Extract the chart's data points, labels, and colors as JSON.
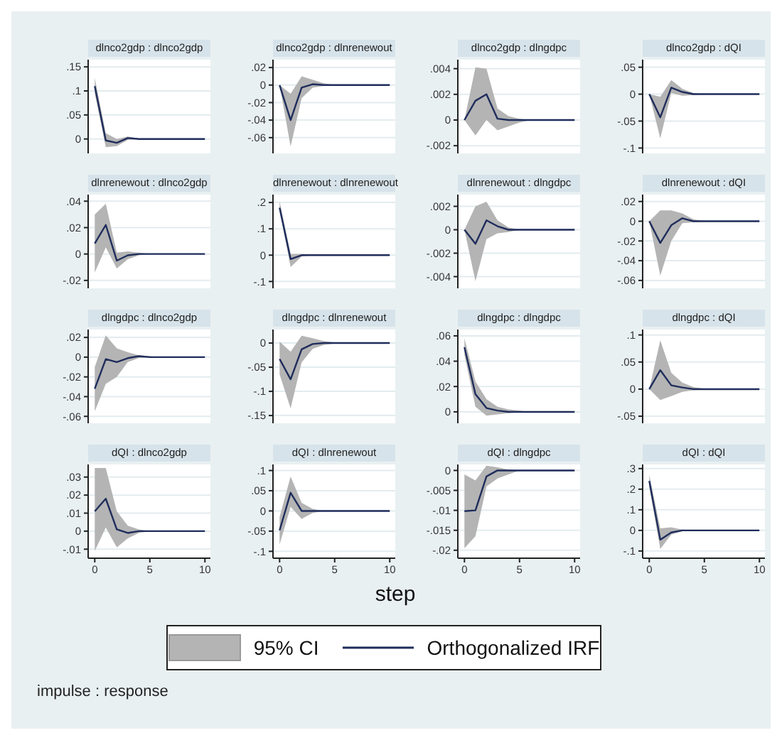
{
  "chart_data": [
    {
      "type": "line",
      "title": "dlnco2gdp : dlnco2gdp",
      "x": [
        0,
        1,
        2,
        3,
        4,
        5,
        6,
        7,
        8,
        9,
        10
      ],
      "xlim": [
        -0.6,
        10.5
      ],
      "xticks": [
        0,
        5,
        10
      ],
      "ylim": [
        -0.03,
        0.165
      ],
      "yticks": [
        {
          "value": 0,
          "label": "0"
        },
        {
          "value": 0.05,
          "label": ".05"
        },
        {
          "value": 0.1,
          "label": ".1"
        },
        {
          "value": 0.15,
          "label": ".15"
        }
      ],
      "grid": "y",
      "tick_labels": "y",
      "series": [
        {
          "color": "#1f2d5c",
          "values": [
            0.11,
            -0.003,
            -0.008,
            0.002,
            0,
            0,
            0,
            0,
            0,
            0,
            0
          ],
          "lower": [
            0.095,
            -0.017,
            -0.015,
            -0.002,
            0,
            0,
            0,
            0,
            0,
            0,
            0
          ],
          "upper": [
            0.127,
            0.012,
            0,
            0.005,
            0.001,
            0,
            0,
            0,
            0,
            0,
            0
          ]
        }
      ]
    },
    {
      "type": "line",
      "title": "dlnco2gdp : dlnrenewout",
      "x": [
        0,
        1,
        2,
        3,
        4,
        5,
        6,
        7,
        8,
        9,
        10
      ],
      "xlim": [
        -0.6,
        10.5
      ],
      "xticks": [
        0,
        5,
        10
      ],
      "ylim": [
        -0.078,
        0.029
      ],
      "yticks": [
        {
          "value": -0.06,
          "label": "-.06"
        },
        {
          "value": -0.04,
          "label": "-.04"
        },
        {
          "value": -0.02,
          "label": "-.02"
        },
        {
          "value": 0,
          "label": "0"
        },
        {
          "value": 0.02,
          "label": ".02"
        }
      ],
      "grid": "y",
      "tick_labels": "y",
      "series": [
        {
          "color": "#1f2d5c",
          "values": [
            0,
            -0.04,
            -0.003,
            0.001,
            0,
            0,
            0,
            0,
            0,
            0,
            0
          ],
          "lower": [
            0,
            -0.07,
            -0.015,
            -0.003,
            -0.001,
            0,
            0,
            0,
            0,
            0,
            0
          ],
          "upper": [
            0,
            -0.01,
            0.01,
            0.006,
            0.002,
            0,
            0,
            0,
            0,
            0,
            0
          ]
        }
      ]
    },
    {
      "type": "line",
      "title": "dlnco2gdp : dlngdpc",
      "x": [
        0,
        1,
        2,
        3,
        4,
        5,
        6,
        7,
        8,
        9,
        10
      ],
      "xlim": [
        -0.6,
        10.5
      ],
      "xticks": [
        0,
        5,
        10
      ],
      "ylim": [
        -0.0026,
        0.0047
      ],
      "yticks": [
        {
          "value": -0.002,
          "label": "-.002"
        },
        {
          "value": 0,
          "label": "0"
        },
        {
          "value": 0.002,
          "label": ".002"
        },
        {
          "value": 0.004,
          "label": ".004"
        }
      ],
      "grid": "y",
      "tick_labels": "y",
      "series": [
        {
          "color": "#1f2d5c",
          "values": [
            0,
            0.0015,
            0.002,
            0.0001,
            0,
            0,
            0,
            0,
            0,
            0,
            0
          ],
          "lower": [
            0,
            -0.0012,
            0,
            -0.0008,
            -0.0005,
            -0.0002,
            0,
            0,
            0,
            0,
            0
          ],
          "upper": [
            0,
            0.0041,
            0.004,
            0.0009,
            0.0003,
            0.0001,
            0,
            0,
            0,
            0,
            0
          ]
        }
      ]
    },
    {
      "type": "line",
      "title": "dlnco2gdp : dQI",
      "x": [
        0,
        1,
        2,
        3,
        4,
        5,
        6,
        7,
        8,
        9,
        10
      ],
      "xlim": [
        -0.6,
        10.5
      ],
      "xticks": [
        0,
        5,
        10
      ],
      "ylim": [
        -0.11,
        0.064
      ],
      "yticks": [
        {
          "value": -0.1,
          "label": "-.1"
        },
        {
          "value": -0.05,
          "label": "-.05"
        },
        {
          "value": 0,
          "label": "0"
        },
        {
          "value": 0.05,
          "label": ".05"
        }
      ],
      "grid": "y",
      "tick_labels": "y",
      "series": [
        {
          "color": "#1f2d5c",
          "values": [
            0,
            -0.043,
            0.012,
            0.004,
            0,
            0,
            0,
            0,
            0,
            0,
            0
          ],
          "lower": [
            0,
            -0.082,
            0.002,
            -0.003,
            -0.002,
            0,
            0,
            0,
            0,
            0,
            0
          ],
          "upper": [
            0,
            -0.005,
            0.026,
            0.01,
            0.002,
            0,
            0,
            0,
            0,
            0,
            0
          ]
        }
      ]
    },
    {
      "type": "line",
      "title": "dlnrenewout : dlnco2gdp",
      "x": [
        0,
        1,
        2,
        3,
        4,
        5,
        6,
        7,
        8,
        9,
        10
      ],
      "xlim": [
        -0.6,
        10.5
      ],
      "xticks": [
        0,
        5,
        10
      ],
      "ylim": [
        -0.026,
        0.045
      ],
      "yticks": [
        {
          "value": -0.02,
          "label": "-.02"
        },
        {
          "value": 0,
          "label": "0"
        },
        {
          "value": 0.02,
          "label": ".02"
        },
        {
          "value": 0.04,
          "label": ".04"
        }
      ],
      "grid": "y",
      "tick_labels": "y",
      "series": [
        {
          "color": "#1f2d5c",
          "values": [
            0.008,
            0.022,
            -0.005,
            -0.001,
            0,
            0,
            0,
            0,
            0,
            0,
            0
          ],
          "lower": [
            -0.014,
            0.005,
            -0.011,
            -0.004,
            -0.001,
            0,
            0,
            0,
            0,
            0,
            0
          ],
          "upper": [
            0.03,
            0.038,
            0.001,
            0.002,
            0.001,
            0,
            0,
            0,
            0,
            0,
            0
          ]
        }
      ]
    },
    {
      "type": "line",
      "title": "dlnrenewout : dlnrenewout",
      "x": [
        0,
        1,
        2,
        3,
        4,
        5,
        6,
        7,
        8,
        9,
        10
      ],
      "xlim": [
        -0.6,
        10.5
      ],
      "xticks": [
        0,
        5,
        10
      ],
      "ylim": [
        -0.126,
        0.23
      ],
      "yticks": [
        {
          "value": -0.1,
          "label": "-.1"
        },
        {
          "value": 0,
          "label": "0"
        },
        {
          "value": 0.1,
          "label": ".1"
        },
        {
          "value": 0.2,
          "label": ".2"
        }
      ],
      "grid": "y",
      "tick_labels": "y",
      "series": [
        {
          "color": "#1f2d5c",
          "values": [
            0.18,
            -0.015,
            0,
            0,
            0,
            0,
            0,
            0,
            0,
            0,
            0
          ],
          "lower": [
            0.17,
            -0.045,
            -0.005,
            0,
            0,
            0,
            0,
            0,
            0,
            0,
            0
          ],
          "upper": [
            0.205,
            0.005,
            0.005,
            0,
            0,
            0,
            0,
            0,
            0,
            0,
            0
          ]
        }
      ]
    },
    {
      "type": "line",
      "title": "dlnrenewout : dlngdpc",
      "x": [
        0,
        1,
        2,
        3,
        4,
        5,
        6,
        7,
        8,
        9,
        10
      ],
      "xlim": [
        -0.6,
        10.5
      ],
      "xticks": [
        0,
        5,
        10
      ],
      "ylim": [
        -0.005,
        0.003
      ],
      "yticks": [
        {
          "value": -0.004,
          "label": "-.004"
        },
        {
          "value": -0.002,
          "label": "-.002"
        },
        {
          "value": 0,
          "label": "0"
        },
        {
          "value": 0.002,
          "label": ".002"
        }
      ],
      "grid": "y",
      "tick_labels": "y",
      "series": [
        {
          "color": "#1f2d5c",
          "values": [
            0,
            -0.0012,
            0.0008,
            0.0003,
            0,
            0,
            0,
            0,
            0,
            0,
            0
          ],
          "lower": [
            0,
            -0.0044,
            -0.0008,
            -0.0003,
            -0.0002,
            0,
            0,
            0,
            0,
            0,
            0
          ],
          "upper": [
            0,
            0.002,
            0.0024,
            0.0008,
            0.0002,
            0,
            0,
            0,
            0,
            0,
            0
          ]
        }
      ]
    },
    {
      "type": "line",
      "title": "dlnrenewout : dQI",
      "x": [
        0,
        1,
        2,
        3,
        4,
        5,
        6,
        7,
        8,
        9,
        10
      ],
      "xlim": [
        -0.6,
        10.5
      ],
      "xticks": [
        0,
        5,
        10
      ],
      "ylim": [
        -0.068,
        0.027
      ],
      "yticks": [
        {
          "value": -0.06,
          "label": "-.06"
        },
        {
          "value": -0.04,
          "label": "-.04"
        },
        {
          "value": -0.02,
          "label": "-.02"
        },
        {
          "value": 0,
          "label": "0"
        },
        {
          "value": 0.02,
          "label": ".02"
        }
      ],
      "grid": "y",
      "tick_labels": "y",
      "series": [
        {
          "color": "#1f2d5c",
          "values": [
            0,
            -0.022,
            -0.004,
            0.003,
            0,
            0,
            0,
            0,
            0,
            0,
            0
          ],
          "lower": [
            0,
            -0.055,
            -0.02,
            -0.002,
            -0.001,
            0,
            0,
            0,
            0,
            0,
            0
          ],
          "upper": [
            0,
            0.011,
            0.011,
            0.008,
            0.002,
            0,
            0,
            0,
            0,
            0,
            0
          ]
        }
      ]
    },
    {
      "type": "line",
      "title": "dlngdpc : dlnco2gdp",
      "x": [
        0,
        1,
        2,
        3,
        4,
        5,
        6,
        7,
        8,
        9,
        10
      ],
      "xlim": [
        -0.6,
        10.5
      ],
      "xticks": [
        0,
        5,
        10
      ],
      "ylim": [
        -0.067,
        0.028
      ],
      "yticks": [
        {
          "value": -0.06,
          "label": "-.06"
        },
        {
          "value": -0.04,
          "label": "-.04"
        },
        {
          "value": -0.02,
          "label": "-.02"
        },
        {
          "value": 0,
          "label": "0"
        },
        {
          "value": 0.02,
          "label": ".02"
        }
      ],
      "grid": "y",
      "tick_labels": "y",
      "series": [
        {
          "color": "#1f2d5c",
          "values": [
            -0.032,
            -0.002,
            -0.005,
            -0.001,
            0.001,
            0,
            0,
            0,
            0,
            0,
            0
          ],
          "lower": [
            -0.055,
            -0.027,
            -0.02,
            -0.005,
            -0.001,
            0,
            0,
            0,
            0,
            0,
            0
          ],
          "upper": [
            -0.01,
            0.022,
            0.009,
            0.005,
            0.002,
            0.001,
            0,
            0,
            0,
            0,
            0
          ]
        }
      ]
    },
    {
      "type": "line",
      "title": "dlngdpc : dlnrenewout",
      "x": [
        0,
        1,
        2,
        3,
        4,
        5,
        6,
        7,
        8,
        9,
        10
      ],
      "xlim": [
        -0.6,
        10.5
      ],
      "xticks": [
        0,
        5,
        10
      ],
      "ylim": [
        -0.166,
        0.028
      ],
      "yticks": [
        {
          "value": -0.15,
          "label": "-.15"
        },
        {
          "value": -0.1,
          "label": "-.1"
        },
        {
          "value": -0.05,
          "label": "-.05"
        },
        {
          "value": 0,
          "label": "0"
        }
      ],
      "grid": "y",
      "tick_labels": "y",
      "series": [
        {
          "color": "#1f2d5c",
          "values": [
            -0.033,
            -0.075,
            -0.013,
            -0.002,
            0,
            0,
            0,
            0,
            0,
            0,
            0
          ],
          "lower": [
            -0.065,
            -0.135,
            -0.04,
            -0.012,
            -0.004,
            -0.001,
            0,
            0,
            0,
            0,
            0
          ],
          "upper": [
            0.003,
            -0.018,
            0.015,
            0.01,
            0.004,
            0.001,
            0,
            0,
            0,
            0,
            0
          ]
        }
      ]
    },
    {
      "type": "line",
      "title": "dlngdpc : dlngdpc",
      "x": [
        0,
        1,
        2,
        3,
        4,
        5,
        6,
        7,
        8,
        9,
        10
      ],
      "xlim": [
        -0.6,
        10.5
      ],
      "xticks": [
        0,
        5,
        10
      ],
      "ylim": [
        -0.009,
        0.065
      ],
      "yticks": [
        {
          "value": 0,
          "label": "0"
        },
        {
          "value": 0.02,
          "label": ".02"
        },
        {
          "value": 0.04,
          "label": ".04"
        },
        {
          "value": 0.06,
          "label": ".06"
        }
      ],
      "grid": "y",
      "tick_labels": "y",
      "series": [
        {
          "color": "#1f2d5c",
          "values": [
            0.051,
            0.014,
            0.003,
            0.001,
            0,
            0,
            0,
            0,
            0,
            0,
            0
          ],
          "lower": [
            0.045,
            0.004,
            -0.003,
            -0.002,
            -0.001,
            0,
            0,
            0,
            0,
            0,
            0
          ],
          "upper": [
            0.058,
            0.024,
            0.01,
            0.004,
            0.002,
            0.001,
            0,
            0,
            0,
            0,
            0
          ]
        }
      ]
    },
    {
      "type": "line",
      "title": "dlngdpc : dQI",
      "x": [
        0,
        1,
        2,
        3,
        4,
        5,
        6,
        7,
        8,
        9,
        10
      ],
      "xlim": [
        -0.6,
        10.5
      ],
      "xticks": [
        0,
        5,
        10
      ],
      "ylim": [
        -0.063,
        0.11
      ],
      "yticks": [
        {
          "value": -0.05,
          "label": "-.05"
        },
        {
          "value": 0,
          "label": "0"
        },
        {
          "value": 0.05,
          "label": ".05"
        },
        {
          "value": 0.1,
          "label": ".1"
        }
      ],
      "grid": "y",
      "tick_labels": "y",
      "series": [
        {
          "color": "#1f2d5c",
          "values": [
            0,
            0.035,
            0.007,
            0.003,
            0,
            0,
            0,
            0,
            0,
            0,
            0
          ],
          "lower": [
            0,
            -0.02,
            -0.013,
            -0.005,
            -0.002,
            0,
            0,
            0,
            0,
            0,
            0
          ],
          "upper": [
            0,
            0.09,
            0.03,
            0.012,
            0.004,
            0.001,
            0,
            0,
            0,
            0,
            0
          ]
        }
      ]
    },
    {
      "type": "line",
      "title": "dQI : dlnco2gdp",
      "x": [
        0,
        1,
        2,
        3,
        4,
        5,
        6,
        7,
        8,
        9,
        10
      ],
      "xlim": [
        -0.6,
        10.5
      ],
      "xticks": [
        0,
        5,
        10
      ],
      "ylim": [
        -0.015,
        0.037
      ],
      "yticks": [
        {
          "value": -0.01,
          "label": "-.01"
        },
        {
          "value": 0,
          "label": "0"
        },
        {
          "value": 0.01,
          "label": ".01"
        },
        {
          "value": 0.02,
          "label": ".02"
        },
        {
          "value": 0.03,
          "label": ".03"
        }
      ],
      "grid": "y",
      "series": [
        {
          "color": "#1f2d5c",
          "values": [
            0.011,
            0.018,
            0.001,
            -0.001,
            0,
            0,
            0,
            0,
            0,
            0,
            0
          ],
          "lower": [
            -0.011,
            0.002,
            -0.009,
            -0.004,
            -0.001,
            0,
            0,
            0,
            0,
            0,
            0
          ],
          "upper": [
            0.035,
            0.035,
            0.011,
            0.003,
            0.001,
            0,
            0,
            0,
            0,
            0,
            0
          ]
        }
      ]
    },
    {
      "type": "line",
      "title": "dQI : dlnrenewout",
      "x": [
        0,
        1,
        2,
        3,
        4,
        5,
        6,
        7,
        8,
        9,
        10
      ],
      "xlim": [
        -0.6,
        10.5
      ],
      "xticks": [
        0,
        5,
        10
      ],
      "ylim": [
        -0.117,
        0.115
      ],
      "yticks": [
        {
          "value": -0.1,
          "label": "-.1"
        },
        {
          "value": -0.05,
          "label": "-.05"
        },
        {
          "value": 0,
          "label": "0"
        },
        {
          "value": 0.05,
          "label": ".05"
        },
        {
          "value": 0.1,
          "label": ".1"
        }
      ],
      "grid": "y",
      "xlabel": "step",
      "legend": "bottom",
      "annotations": [
        "95% CI",
        "impulse : response"
      ],
      "series": [
        {
          "name": "Orthogonalized IRF",
          "color": "#1f2d5c",
          "values": [
            -0.048,
            0.045,
            0,
            0,
            0,
            0,
            0,
            0,
            0,
            0,
            0
          ],
          "lower": [
            -0.083,
            0.01,
            -0.02,
            -0.005,
            0,
            0,
            0,
            0,
            0,
            0,
            0
          ],
          "upper": [
            -0.015,
            0.085,
            0.02,
            0.005,
            0,
            0,
            0,
            0,
            0,
            0,
            0
          ]
        }
      ]
    },
    {
      "type": "line",
      "title": "dQI : dlngdpc",
      "x": [
        0,
        1,
        2,
        3,
        4,
        5,
        6,
        7,
        8,
        9,
        10
      ],
      "xlim": [
        -0.6,
        10.5
      ],
      "xticks": [
        0,
        5,
        10
      ],
      "ylim": [
        -0.022,
        0.0015
      ],
      "yticks": [
        {
          "value": -0.02,
          "label": "-.02"
        },
        {
          "value": -0.015,
          "label": "-.015"
        },
        {
          "value": -0.01,
          "label": "-.01"
        },
        {
          "value": -0.005,
          "label": "-.005"
        },
        {
          "value": 0,
          "label": "0"
        }
      ],
      "grid": "y",
      "series": [
        {
          "color": "#1f2d5c",
          "values": [
            -0.0102,
            -0.01,
            -0.0015,
            0,
            0,
            0,
            0,
            0,
            0,
            0,
            0
          ],
          "lower": [
            -0.0195,
            -0.0165,
            -0.004,
            -0.002,
            -0.001,
            0,
            0,
            0,
            0,
            0,
            0
          ],
          "upper": [
            -0.001,
            -0.0025,
            0.0012,
            0.0008,
            0.0002,
            0,
            0,
            0,
            0,
            0,
            0
          ]
        }
      ]
    },
    {
      "type": "line",
      "title": "dQI : dQI",
      "x": [
        0,
        1,
        2,
        3,
        4,
        5,
        6,
        7,
        8,
        9,
        10
      ],
      "xlim": [
        -0.6,
        10.5
      ],
      "xticks": [
        0,
        5,
        10
      ],
      "ylim": [
        -0.135,
        0.32
      ],
      "yticks": [
        {
          "value": -0.1,
          "label": "-.1"
        },
        {
          "value": 0,
          "label": "0"
        },
        {
          "value": 0.1,
          "label": ".1"
        },
        {
          "value": 0.2,
          "label": ".2"
        },
        {
          "value": 0.3,
          "label": ".3"
        }
      ],
      "grid": "y",
      "series": [
        {
          "color": "#1f2d5c",
          "values": [
            0.24,
            -0.045,
            -0.01,
            0,
            0,
            0,
            0,
            0,
            0,
            0,
            0
          ],
          "lower": [
            0.21,
            -0.09,
            -0.02,
            -0.004,
            0,
            0,
            0,
            0,
            0,
            0,
            0
          ],
          "upper": [
            0.27,
            0.01,
            0.015,
            0.004,
            0,
            0,
            0,
            0,
            0,
            0,
            0
          ]
        }
      ]
    }
  ]
}
